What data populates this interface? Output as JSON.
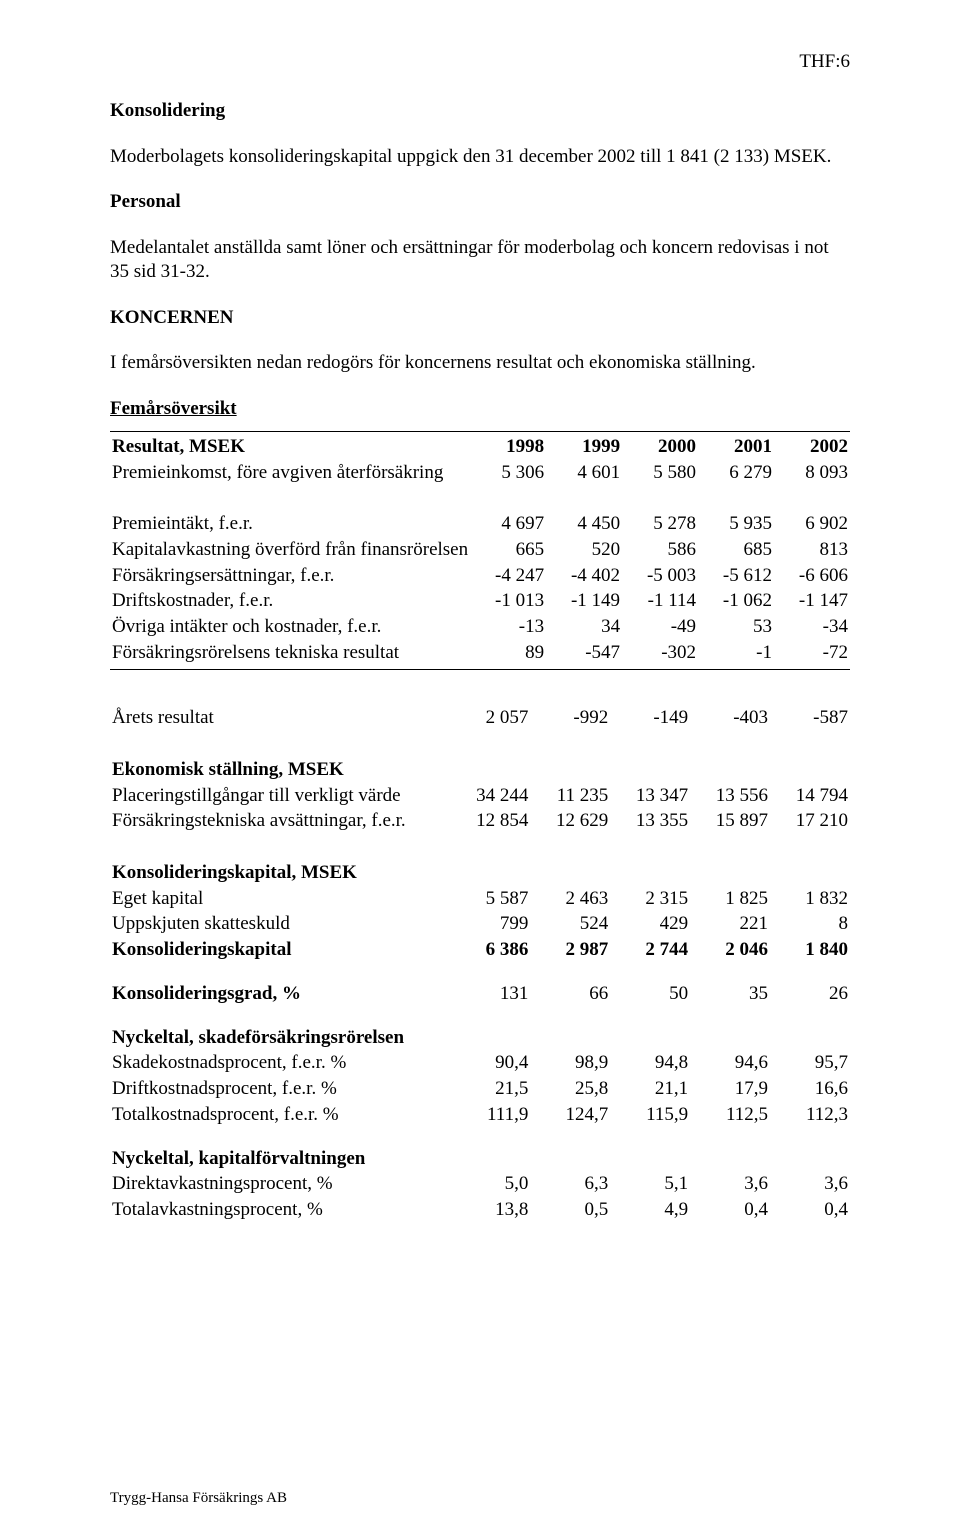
{
  "header": {
    "page_ref": "THF:6"
  },
  "sections": {
    "konsolidering": {
      "title": "Konsolidering",
      "text": "Moderbolagets konsolideringskapital uppgick den 31 december 2002 till 1 841 (2 133) MSEK."
    },
    "personal": {
      "title": "Personal",
      "text": "Medelantalet anställda samt löner och ersättningar för moderbolag och koncern redovisas i not 35 sid 31-32."
    },
    "koncernen": {
      "title": "KONCERNEN",
      "text": "I femårsöversikten nedan redogörs för koncernens resultat och ekonomiska ställning."
    },
    "femars": {
      "title": "Femårsöversikt"
    }
  },
  "table": {
    "years": [
      "1998",
      "1999",
      "2000",
      "2001",
      "2002"
    ],
    "resultat_header": "Resultat, MSEK",
    "rows1": [
      {
        "label": "Premieinkomst, före avgiven återförsäkring",
        "v": [
          "5 306",
          "4 601",
          "5 580",
          "6 279",
          "8 093"
        ]
      }
    ],
    "rows2": [
      {
        "label": "Premieintäkt, f.e.r.",
        "v": [
          "4 697",
          "4 450",
          "5 278",
          "5 935",
          "6 902"
        ]
      },
      {
        "label": "Kapitalavkastning överförd från finansrörelsen",
        "v": [
          "665",
          "520",
          "586",
          "685",
          "813"
        ]
      },
      {
        "label": "Försäkringsersättningar, f.e.r.",
        "v": [
          "-4 247",
          "-4 402",
          "-5 003",
          "-5 612",
          "-6 606"
        ]
      },
      {
        "label": "Driftskostnader, f.e.r.",
        "v": [
          "-1 013",
          "-1 149",
          "-1 114",
          "-1 062",
          "-1 147"
        ]
      },
      {
        "label": "Övriga intäkter och kostnader, f.e.r.",
        "v": [
          "-13",
          "34",
          "-49",
          "53",
          "-34"
        ]
      },
      {
        "label": "Försäkringsrörelsens tekniska resultat",
        "v": [
          "89",
          "-547",
          "-302",
          "-1",
          "-72"
        ]
      }
    ],
    "arets": {
      "label": "Årets resultat",
      "v": [
        "2 057",
        "-992",
        "-149",
        "-403",
        "-587"
      ]
    },
    "ekonomisk_header": "Ekonomisk ställning, MSEK",
    "rows3": [
      {
        "label": "Placeringstillgångar till verkligt värde",
        "v": [
          "34 244",
          "11 235",
          "13 347",
          "13 556",
          "14 794"
        ]
      },
      {
        "label": "Försäkringstekniska avsättningar, f.e.r.",
        "v": [
          "12 854",
          "12 629",
          "13 355",
          "15 897",
          "17 210"
        ]
      }
    ],
    "konsol_header": "Konsolideringskapital, MSEK",
    "rows4": [
      {
        "label": "Eget kapital",
        "v": [
          "5 587",
          "2 463",
          "2 315",
          "1 825",
          "1 832"
        ]
      },
      {
        "label": "Uppskjuten skatteskuld",
        "v": [
          "799",
          "524",
          "429",
          "221",
          "8"
        ]
      }
    ],
    "konsol_total": {
      "label": "Konsolideringskapital",
      "v": [
        "6 386",
        "2 987",
        "2 744",
        "2 046",
        "1 840"
      ]
    },
    "konsolgrad": {
      "label": "Konsolideringsgrad, %",
      "v": [
        "131",
        "66",
        "50",
        "35",
        "26"
      ]
    },
    "nyckel1_header": "Nyckeltal, skadeförsäkringsrörelsen",
    "rows5": [
      {
        "label": "Skadekostnadsprocent, f.e.r. %",
        "v": [
          "90,4",
          "98,9",
          "94,8",
          "94,6",
          "95,7"
        ]
      },
      {
        "label": "Driftkostnadsprocent, f.e.r. %",
        "v": [
          "21,5",
          "25,8",
          "21,1",
          "17,9",
          "16,6"
        ]
      },
      {
        "label": "Totalkostnadsprocent, f.e.r. %",
        "v": [
          "111,9",
          "124,7",
          "115,9",
          "112,5",
          "112,3"
        ]
      }
    ],
    "nyckel2_header": "Nyckeltal, kapitalförvaltningen",
    "rows6": [
      {
        "label": "Direktavkastningsprocent, %",
        "v": [
          "5,0",
          "6,3",
          "5,1",
          "3,6",
          "3,6"
        ]
      },
      {
        "label": "Totalavkastningsprocent, %",
        "v": [
          "13,8",
          "0,5",
          "4,9",
          "0,4",
          "0,4"
        ]
      }
    ]
  },
  "footer": {
    "text": "Trygg-Hansa Försäkrings AB"
  }
}
